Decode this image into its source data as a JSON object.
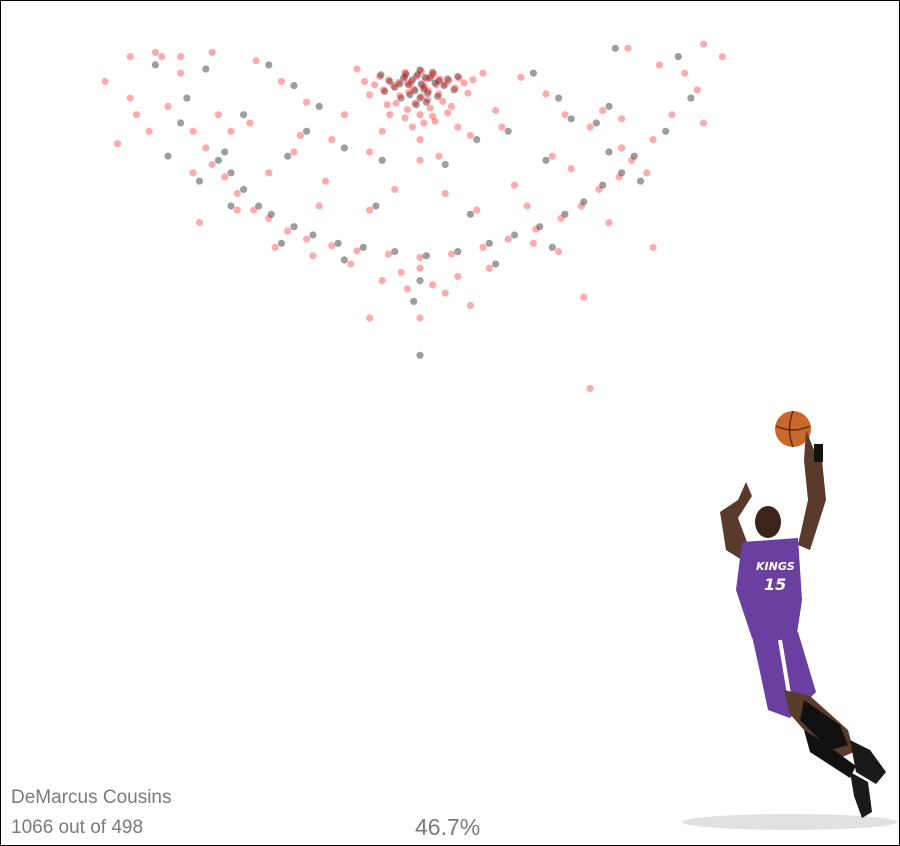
{
  "player": {
    "name": "DeMarcus Cousins",
    "attempts_text": "1066 out of 498",
    "fg_pct_text": "46.7%"
  },
  "colors": {
    "made": "#000000",
    "missed": "#ff0000",
    "text": "#7a7a7a",
    "jersey": "#6a3fa0"
  },
  "photo": {
    "icon": "basketball-player-dunk-icon",
    "jersey_text": "KINGS",
    "jersey_number": "15"
  },
  "chart_data": {
    "type": "scatter",
    "title": "",
    "xlabel": "",
    "ylabel": "",
    "xlim": [
      -250,
      250
    ],
    "ylim": [
      -50,
      420
    ],
    "grid": false,
    "legend": "none",
    "series": [
      {
        "name": "",
        "color": "#000000",
        "points": [
          [
            -2,
            -8
          ],
          [
            4,
            -5
          ],
          [
            -6,
            -2
          ],
          [
            1,
            3
          ],
          [
            8,
            -4
          ],
          [
            -9,
            4
          ],
          [
            12,
            2
          ],
          [
            -13,
            -4
          ],
          [
            3,
            9
          ],
          [
            -4,
            11
          ],
          [
            15,
            -1
          ],
          [
            -16,
            3
          ],
          [
            6,
            14
          ],
          [
            -8,
            16
          ],
          [
            19,
            5
          ],
          [
            -20,
            7
          ],
          [
            10,
            -11
          ],
          [
            -11,
            -9
          ],
          [
            0,
            20
          ],
          [
            22,
            -3
          ],
          [
            -24,
            0
          ],
          [
            5,
            25
          ],
          [
            -3,
            28
          ],
          [
            14,
            18
          ],
          [
            -15,
            20
          ],
          [
            0,
            -14
          ],
          [
            27,
            10
          ],
          [
            -28,
            12
          ],
          [
            30,
            -6
          ],
          [
            -31,
            -8
          ],
          [
            -160,
            95
          ],
          [
            -150,
            110
          ],
          [
            -140,
            130
          ],
          [
            -128,
            150
          ],
          [
            -118,
            160
          ],
          [
            -100,
            175
          ],
          [
            -85,
            185
          ],
          [
            -65,
            195
          ],
          [
            -45,
            200
          ],
          [
            -20,
            205
          ],
          [
            5,
            210
          ],
          [
            30,
            205
          ],
          [
            55,
            195
          ],
          [
            75,
            185
          ],
          [
            95,
            175
          ],
          [
            115,
            160
          ],
          [
            130,
            145
          ],
          [
            145,
            125
          ],
          [
            160,
            110
          ],
          [
            170,
            90
          ],
          [
            -175,
            120
          ],
          [
            -155,
            85
          ],
          [
            175,
            120
          ],
          [
            150,
            85
          ],
          [
            -110,
            195
          ],
          [
            105,
            200
          ],
          [
            -60,
            215
          ],
          [
            60,
            220
          ],
          [
            0,
            240
          ],
          [
            -5,
            265
          ],
          [
            -200,
            90
          ],
          [
            -190,
            50
          ],
          [
            -185,
            20
          ],
          [
            -210,
            -20
          ],
          [
            195,
            60
          ],
          [
            215,
            20
          ],
          [
            205,
            -30
          ],
          [
            -120,
            -20
          ],
          [
            -100,
            5
          ],
          [
            -80,
            30
          ],
          [
            90,
            -10
          ],
          [
            110,
            20
          ],
          [
            120,
            45
          ],
          [
            -140,
            40
          ],
          [
            140,
            50
          ],
          [
            -60,
            80
          ],
          [
            -30,
            95
          ],
          [
            20,
            100
          ],
          [
            45,
            70
          ],
          [
            -90,
            60
          ],
          [
            70,
            60
          ],
          [
            150,
            30
          ],
          [
            -150,
            150
          ],
          [
            40,
            160
          ],
          [
            -35,
            150
          ],
          [
            0,
            330
          ],
          [
            155,
            -40
          ],
          [
            -170,
            -15
          ],
          [
            100,
            95
          ],
          [
            -105,
            90
          ]
        ]
      },
      {
        "name": "",
        "color": "#ff0000",
        "points": [
          [
            -3,
            -6
          ],
          [
            5,
            -3
          ],
          [
            -7,
            1
          ],
          [
            2,
            5
          ],
          [
            9,
            -7
          ],
          [
            -10,
            2
          ],
          [
            13,
            4
          ],
          [
            -12,
            -6
          ],
          [
            4,
            7
          ],
          [
            -5,
            9
          ],
          [
            16,
            -3
          ],
          [
            -17,
            1
          ],
          [
            7,
            12
          ],
          [
            -9,
            13
          ],
          [
            20,
            3
          ],
          [
            -21,
            5
          ],
          [
            11,
            -9
          ],
          [
            -12,
            -11
          ],
          [
            1,
            18
          ],
          [
            23,
            -1
          ],
          [
            -25,
            -2
          ],
          [
            6,
            22
          ],
          [
            -4,
            26
          ],
          [
            15,
            15
          ],
          [
            -16,
            17
          ],
          [
            1,
            -12
          ],
          [
            28,
            8
          ],
          [
            -29,
            10
          ],
          [
            31,
            -4
          ],
          [
            -32,
            -6
          ],
          [
            18,
            24
          ],
          [
            -19,
            26
          ],
          [
            35,
            2
          ],
          [
            -36,
            4
          ],
          [
            8,
            32
          ],
          [
            -10,
            34
          ],
          [
            25,
            30
          ],
          [
            -26,
            28
          ],
          [
            38,
            14
          ],
          [
            -40,
            16
          ],
          [
            0,
            40
          ],
          [
            10,
            42
          ],
          [
            -12,
            44
          ],
          [
            22,
            38
          ],
          [
            -24,
            40
          ],
          [
            3,
            50
          ],
          [
            -6,
            55
          ],
          [
            12,
            48
          ],
          [
            42,
            -2
          ],
          [
            -44,
            0
          ],
          [
            -165,
            100
          ],
          [
            -155,
            115
          ],
          [
            -145,
            135
          ],
          [
            -132,
            155
          ],
          [
            -120,
            165
          ],
          [
            -105,
            180
          ],
          [
            -90,
            190
          ],
          [
            -70,
            198
          ],
          [
            -50,
            204
          ],
          [
            -25,
            208
          ],
          [
            0,
            212
          ],
          [
            25,
            208
          ],
          [
            50,
            200
          ],
          [
            70,
            190
          ],
          [
            92,
            178
          ],
          [
            112,
            165
          ],
          [
            128,
            150
          ],
          [
            142,
            130
          ],
          [
            158,
            115
          ],
          [
            168,
            95
          ],
          [
            -180,
            110
          ],
          [
            -170,
            80
          ],
          [
            180,
            110
          ],
          [
            160,
            80
          ],
          [
            -115,
            200
          ],
          [
            110,
            205
          ],
          [
            -55,
            220
          ],
          [
            55,
            225
          ],
          [
            10,
            245
          ],
          [
            -15,
            230
          ],
          [
            20,
            255
          ],
          [
            -10,
            250
          ],
          [
            30,
            235
          ],
          [
            -30,
            240
          ],
          [
            0,
            225
          ],
          [
            -215,
            60
          ],
          [
            -200,
            30
          ],
          [
            -190,
            -10
          ],
          [
            -230,
            20
          ],
          [
            -205,
            -30
          ],
          [
            200,
            40
          ],
          [
            220,
            10
          ],
          [
            210,
            -10
          ],
          [
            225,
            50
          ],
          [
            -225,
            40
          ],
          [
            -130,
            -25
          ],
          [
            -110,
            0
          ],
          [
            -90,
            25
          ],
          [
            80,
            -5
          ],
          [
            100,
            15
          ],
          [
            115,
            40
          ],
          [
            -135,
            50
          ],
          [
            135,
            55
          ],
          [
            -70,
            70
          ],
          [
            -40,
            85
          ],
          [
            15,
            90
          ],
          [
            40,
            65
          ],
          [
            -95,
            65
          ],
          [
            65,
            55
          ],
          [
            145,
            35
          ],
          [
            -145,
            155
          ],
          [
            45,
            155
          ],
          [
            -40,
            155
          ],
          [
            105,
            90
          ],
          [
            -100,
            85
          ],
          [
            -75,
            120
          ],
          [
            75,
            125
          ],
          [
            -60,
            40
          ],
          [
            60,
            35
          ],
          [
            -30,
            60
          ],
          [
            30,
            55
          ],
          [
            0,
            70
          ],
          [
            -50,
            -15
          ],
          [
            50,
            -10
          ],
          [
            0,
            95
          ],
          [
            -120,
            110
          ],
          [
            120,
            105
          ],
          [
            -80,
            150
          ],
          [
            85,
            150
          ],
          [
            -20,
            130
          ],
          [
            20,
            135
          ],
          [
            190,
            -20
          ],
          [
            -190,
            -30
          ],
          [
            165,
            -40
          ],
          [
            -165,
            -35
          ],
          [
            -250,
            0
          ],
          [
            -240,
            75
          ],
          [
            -210,
            -35
          ],
          [
            225,
            -45
          ],
          [
            240,
            -30
          ],
          [
            -230,
            -30
          ],
          [
            -180,
            60
          ],
          [
            185,
            70
          ],
          [
            -160,
            40
          ],
          [
            160,
            45
          ],
          [
            130,
            260
          ],
          [
            40,
            270
          ],
          [
            90,
            195
          ],
          [
            -85,
            210
          ],
          [
            185,
            200
          ],
          [
            -150,
            60
          ],
          [
            150,
            170
          ],
          [
            -175,
            170
          ],
          [
            0,
            285
          ],
          [
            -40,
            285
          ],
          [
            135,
            370
          ]
        ]
      }
    ]
  }
}
